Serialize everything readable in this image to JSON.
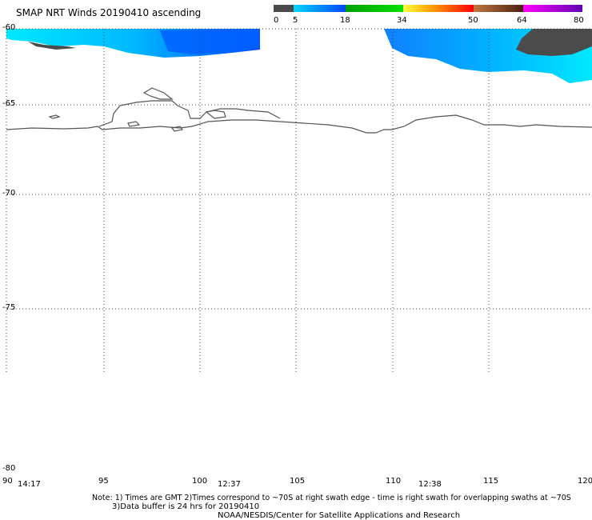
{
  "title": "SMAP NRT Winds 20190410 ascending",
  "colorbar": {
    "ticks": [
      "0",
      "5",
      "18",
      "34",
      "50",
      "64",
      "80"
    ],
    "segments": [
      {
        "color": "#4a4a4a"
      },
      {
        "color": "#0a84ff"
      },
      {
        "color": "#00c400"
      },
      {
        "color": "#ffe000"
      },
      {
        "color": "#ff8c00"
      },
      {
        "color": "#ff0000"
      },
      {
        "color": "#8b4513"
      },
      {
        "color": "#ff00ff"
      },
      {
        "color": "#7000c0"
      }
    ]
  },
  "map": {
    "lat_labels": [
      "-60",
      "-65",
      "-70",
      "-75",
      "-80"
    ],
    "lon_labels": [
      "90",
      "95",
      "100",
      "105",
      "110",
      "115",
      "120"
    ],
    "pass_times": [
      "14:17",
      "12:37",
      "12:38"
    ]
  },
  "notes": {
    "line1": "Note: 1) Times are GMT 2)Times correspond to ~70S at right swath edge - time is right swath for overlapping swaths at ~70S",
    "line2": "3)Data buffer is 24 hrs for 20190410",
    "line3": "NOAA/NESDIS/Center for Satellite Applications and Research"
  },
  "colors": {
    "cyan": "#00e5ff",
    "blue": "#0050ff",
    "gray": "#4b4b4b",
    "coast": "#444444"
  }
}
